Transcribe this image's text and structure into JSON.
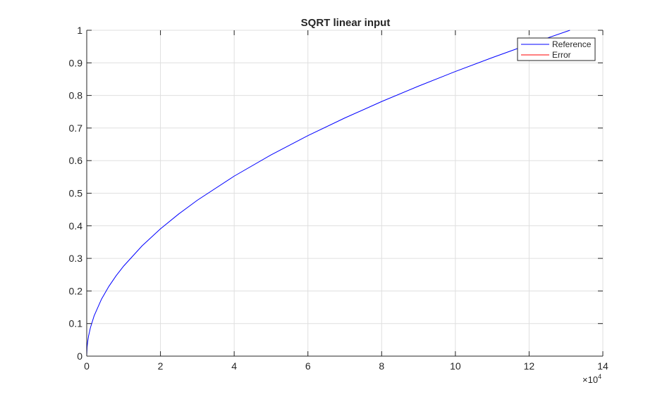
{
  "chart_data": {
    "type": "line",
    "title": "SQRT linear input",
    "xlabel": "",
    "ylabel": "",
    "xlim": [
      0,
      140000
    ],
    "ylim": [
      0,
      1
    ],
    "x_multiplier_label": "×10",
    "x_multiplier_exponent": "4",
    "x_ticks": [
      0,
      20000,
      40000,
      60000,
      80000,
      100000,
      120000,
      140000
    ],
    "x_tick_labels": [
      "0",
      "2",
      "4",
      "6",
      "8",
      "10",
      "12",
      "14"
    ],
    "y_ticks": [
      0,
      0.1,
      0.2,
      0.3,
      0.4,
      0.5,
      0.6,
      0.7,
      0.8,
      0.9,
      1
    ],
    "y_tick_labels": [
      "0",
      "0.1",
      "0.2",
      "0.3",
      "0.4",
      "0.5",
      "0.6",
      "0.7",
      "0.8",
      "0.9",
      "1"
    ],
    "grid": true,
    "legend_placement": "top-right",
    "x": [
      0,
      100,
      250,
      500,
      1000,
      2000,
      4000,
      6000,
      8000,
      10000,
      15000,
      20000,
      25000,
      30000,
      40000,
      50000,
      60000,
      70000,
      80000,
      90000,
      100000,
      110000,
      120000,
      131072
    ],
    "series": [
      {
        "name": "Reference",
        "color": "#0000ff",
        "values": [
          0,
          0.0276,
          0.0437,
          0.0618,
          0.0873,
          0.1235,
          0.1747,
          0.214,
          0.2471,
          0.2762,
          0.3383,
          0.3906,
          0.4367,
          0.4784,
          0.5524,
          0.6176,
          0.6766,
          0.7308,
          0.7813,
          0.8286,
          0.8735,
          0.9161,
          0.9568,
          1.0
        ]
      },
      {
        "name": "Error",
        "color": "#ff0000",
        "values": [
          0,
          0,
          0,
          0,
          0,
          0,
          0,
          0,
          0,
          0,
          0,
          0,
          0,
          0,
          0,
          0,
          0,
          0,
          0,
          0,
          0,
          0,
          0,
          0
        ]
      }
    ]
  }
}
